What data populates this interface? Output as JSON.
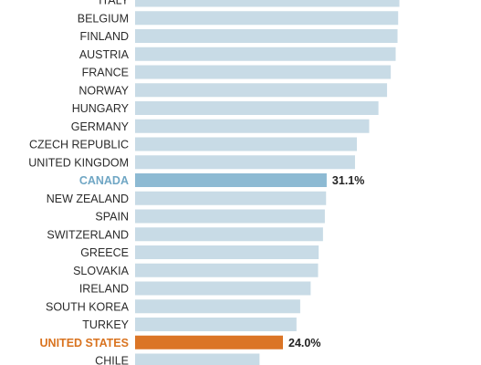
{
  "chart_data": {
    "type": "bar",
    "orientation": "horizontal",
    "title": "",
    "xlabel": "",
    "ylabel": "",
    "categories": [
      "ITALY",
      "BELGIUM",
      "FINLAND",
      "AUSTRIA",
      "FRANCE",
      "NORWAY",
      "HUNGARY",
      "GERMANY",
      "CZECH REPUBLIC",
      "UNITED KINGDOM",
      "CANADA",
      "NEW ZEALAND",
      "SPAIN",
      "SWITZERLAND",
      "GREECE",
      "SLOVAKIA",
      "IRELAND",
      "SOUTH KOREA",
      "TURKEY",
      "UNITED STATES",
      "CHILE"
    ],
    "values": [
      42.9,
      42.7,
      42.6,
      42.3,
      41.5,
      40.9,
      39.5,
      38.0,
      36.0,
      35.7,
      31.1,
      31.0,
      30.8,
      30.5,
      29.8,
      29.7,
      28.5,
      26.8,
      26.2,
      24.0,
      20.2
    ],
    "data_labels": {
      "CANADA": "31.1%",
      "UNITED STATES": "24.0%"
    },
    "xlim": [
      0,
      44
    ],
    "grid": false,
    "legend": "none",
    "colors": {
      "default_bar": "#c8dbe6",
      "canada_bar": "#8dbad3",
      "us_bar": "#db7526",
      "canada_label": "#6fa6c4",
      "us_label": "#d9731f",
      "text": "#2b2b2b"
    }
  }
}
